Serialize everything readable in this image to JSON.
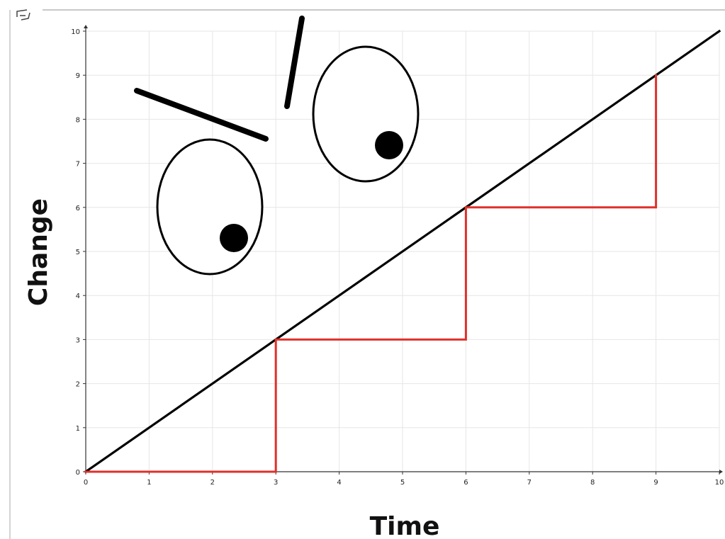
{
  "chart_data": {
    "type": "line",
    "title": "",
    "xlabel": "Time",
    "ylabel": "Change",
    "xlim": [
      0,
      10
    ],
    "ylim": [
      0,
      10
    ],
    "xticks": [
      0,
      1,
      2,
      3,
      4,
      5,
      6,
      7,
      8,
      9,
      10
    ],
    "yticks": [
      0,
      1,
      2,
      3,
      4,
      5,
      6,
      7,
      8,
      9,
      10
    ],
    "grid": true,
    "series": [
      {
        "x": [
          0,
          10
        ],
        "y": [
          0,
          10
        ],
        "color": "#000000",
        "style": "line"
      },
      {
        "x": [
          0,
          3,
          3,
          6,
          6,
          9,
          9
        ],
        "y": [
          0,
          0,
          3,
          3,
          6,
          6,
          9
        ],
        "color": "#e0302a",
        "style": "step"
      }
    ]
  },
  "decorations": {
    "drawing": "face-doodle",
    "parts": [
      "left-eye",
      "right-eye",
      "left-pupil",
      "right-pupil",
      "left-eyebrow",
      "right-eyebrow"
    ],
    "stroke_color": "#000000"
  }
}
